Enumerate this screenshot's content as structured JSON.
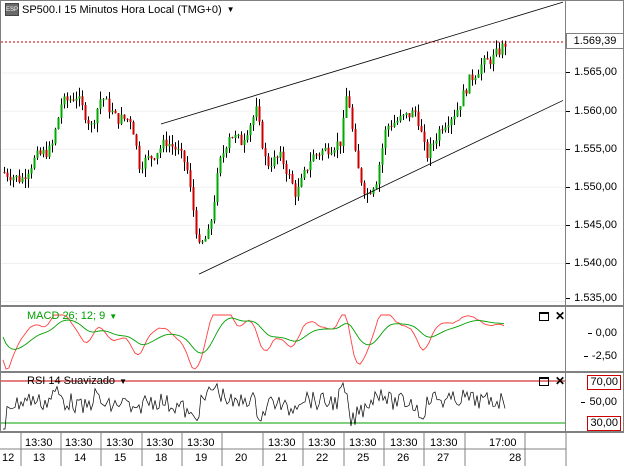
{
  "chart": {
    "symbol_title": "SP500.I 15 Minutos Hora Local (TMG+0)",
    "icon_text": "ESP",
    "last_price": "1.569,39",
    "price_ticks": [
      "1.565,00",
      "1.560,00",
      "1.555,00",
      "1.550,00",
      "1.545,00",
      "1.540,00",
      "1.535,00"
    ],
    "colors": {
      "up": "#00aa00",
      "down": "#cc0000",
      "wick": "#000000",
      "trend": "#000000",
      "last_line": "#cc0000"
    }
  },
  "macd": {
    "label": "MACD 26; 12; 9",
    "ticks": [
      "0,00",
      "-2,50"
    ],
    "colors": {
      "macd": "#ff4040",
      "signal": "#00a000"
    }
  },
  "rsi": {
    "label": "RSI 14 Suavizado",
    "ticks": [
      "70,00",
      "50,00",
      "30,00"
    ],
    "colors": {
      "line": "#000000",
      "upper": "#cc0000",
      "lower": "#00a000"
    }
  },
  "time_axis": {
    "times": [
      "13:30",
      "13:30",
      "13:30",
      "13:30",
      "13:30",
      "13:30",
      "13:30",
      "13:30",
      "13:30",
      "13:30",
      "13:30",
      "17:00"
    ],
    "dates": [
      "12",
      "13",
      "14",
      "15",
      "18",
      "19",
      "20",
      "21",
      "22",
      "25",
      "26",
      "27",
      "28"
    ]
  },
  "chart_data": {
    "type": "candlestick",
    "title": "SP500.I 15 Minutos Hora Local (TMG+0)",
    "last": 1569.39,
    "ylim": [
      1533,
      1575
    ],
    "x_dates": [
      "12",
      "13",
      "14",
      "15",
      "18",
      "19",
      "20",
      "21",
      "22",
      "25",
      "26",
      "27",
      "28"
    ],
    "indicators": [
      {
        "name": "MACD 26; 12; 9",
        "ylim": [
          -4,
          2
        ]
      },
      {
        "name": "RSI 14 Suavizado",
        "ylim": [
          20,
          75
        ],
        "levels": [
          70,
          30
        ]
      }
    ]
  }
}
